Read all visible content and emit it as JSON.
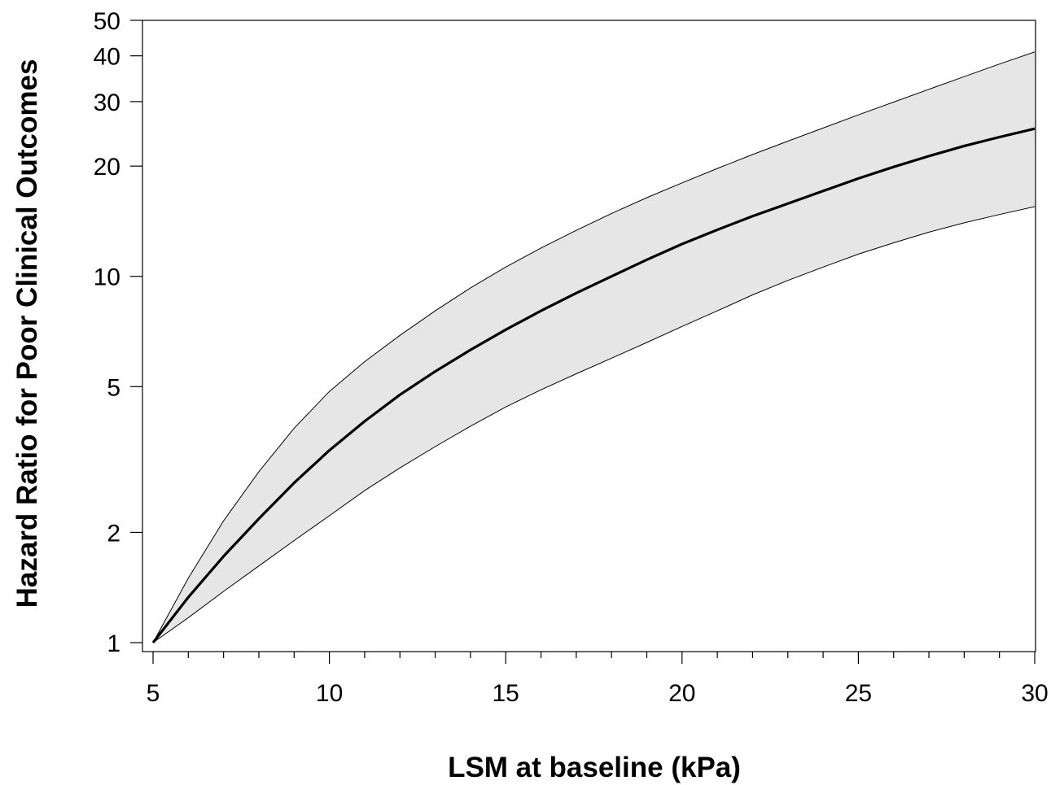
{
  "chart_data": {
    "type": "line",
    "title": "",
    "xlabel": "LSM at baseline (kPa)",
    "ylabel": "Hazard Ratio for Poor Clinical Outcomes",
    "xlim": [
      5,
      30
    ],
    "ylim": [
      1,
      50
    ],
    "y_scale": "log",
    "grid": false,
    "x_ticks": [
      5,
      10,
      15,
      20,
      25,
      30
    ],
    "x_minor_ticks": [
      6,
      7,
      8,
      9,
      11,
      12,
      13,
      14,
      16,
      17,
      18,
      19,
      21,
      22,
      23,
      24,
      26,
      27,
      28,
      29
    ],
    "y_ticks": [
      1,
      2,
      5,
      10,
      20,
      30,
      40,
      50
    ],
    "x": [
      5,
      6,
      7,
      8,
      9,
      10,
      11,
      12,
      13,
      14,
      15,
      16,
      17,
      18,
      19,
      20,
      21,
      22,
      23,
      24,
      25,
      26,
      27,
      28,
      29,
      30
    ],
    "series": [
      {
        "values": [
          1.0,
          1.33,
          1.72,
          2.18,
          2.73,
          3.35,
          4.02,
          4.75,
          5.5,
          6.3,
          7.15,
          8.05,
          9.0,
          10.0,
          11.1,
          12.25,
          13.4,
          14.6,
          15.8,
          17.1,
          18.5,
          19.9,
          21.3,
          22.7,
          24.0,
          25.3
        ],
        "ci_lower": [
          1.0,
          1.17,
          1.38,
          1.62,
          1.9,
          2.22,
          2.6,
          3.0,
          3.43,
          3.9,
          4.4,
          4.9,
          5.42,
          5.98,
          6.6,
          7.3,
          8.05,
          8.9,
          9.75,
          10.6,
          11.5,
          12.35,
          13.2,
          14.0,
          14.75,
          15.5
        ],
        "ci_upper": [
          1.0,
          1.5,
          2.15,
          2.93,
          3.85,
          4.85,
          5.85,
          6.9,
          8.05,
          9.3,
          10.6,
          11.95,
          13.35,
          14.85,
          16.4,
          18.0,
          19.7,
          21.5,
          23.4,
          25.4,
          27.6,
          29.9,
          32.4,
          35.1,
          38.0,
          41.0
        ]
      }
    ],
    "colors": {
      "line": "#000000",
      "band_fill": "#e6e6e6",
      "band_edge": "#000000",
      "axis": "#000000"
    }
  }
}
